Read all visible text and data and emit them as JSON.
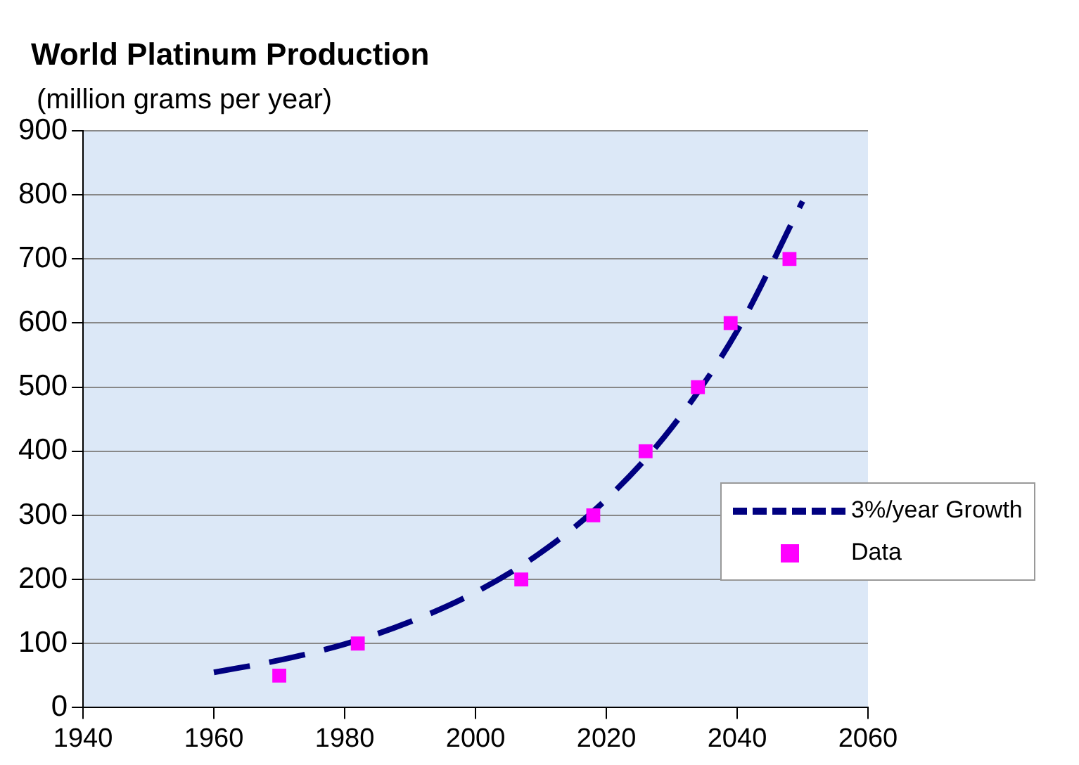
{
  "chart_data": {
    "type": "scatter",
    "title": "World Platinum Production",
    "subtitle": "(million grams per year)",
    "xlim": [
      1940,
      2060
    ],
    "xticks": [
      1940,
      1960,
      1980,
      2000,
      2020,
      2040,
      2060
    ],
    "ylim": [
      0,
      900
    ],
    "yticks": [
      0,
      100,
      200,
      300,
      400,
      500,
      600,
      700,
      800,
      900
    ],
    "grid": "y",
    "legend": "right",
    "series": [
      {
        "name": "3%/year Growth",
        "type": "line",
        "color": "#000080",
        "line_style": "dashed",
        "marker": "none",
        "x": [
          1960,
          1970,
          1980,
          1990,
          2000,
          2010,
          2020,
          2030,
          2040,
          2050
        ],
        "values": [
          55,
          74,
          99,
          134,
          180,
          242,
          325,
          437,
          588,
          790
        ]
      },
      {
        "name": "Data",
        "color": "#ff00ff",
        "marker": "square",
        "x": [
          1970,
          1982,
          2007,
          2018,
          2026,
          2034,
          2039,
          2048
        ],
        "values": [
          50,
          100,
          200,
          300,
          400,
          500,
          600,
          700
        ]
      }
    ]
  }
}
